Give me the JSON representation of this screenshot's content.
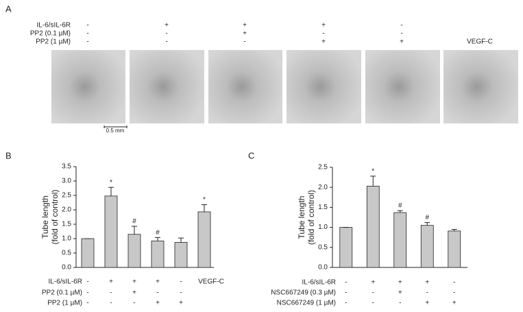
{
  "panel_labels": [
    "A",
    "B",
    "C"
  ],
  "panel_a": {
    "rows": [
      {
        "name": "IL-6/sIL-6R",
        "marks": [
          "-",
          "+",
          "+",
          "+",
          "-",
          null
        ]
      },
      {
        "name": "PP2 (0.1 µM)",
        "marks": [
          "-",
          "-",
          "+",
          "-",
          "-",
          null
        ]
      },
      {
        "name": "PP2 (1 µM)",
        "marks": [
          "-",
          "-",
          "-",
          "+",
          "+",
          "VEGF-C"
        ]
      }
    ],
    "scale_bar": "0.5 mm"
  },
  "chart_data": [
    {
      "type": "bar",
      "ylabel": [
        "Tube length",
        "(fold of control)"
      ],
      "color": "#c8c8c8",
      "values": [
        1.0,
        2.48,
        1.15,
        0.92,
        0.87,
        1.93
      ],
      "errors": [
        0,
        0.3,
        0.28,
        0.12,
        0.15,
        0.25
      ],
      "annotations": [
        null,
        "*",
        "#",
        "#",
        null,
        "*"
      ],
      "ylim": [
        0,
        3.5
      ],
      "yticks": [
        {
          "value": 0,
          "label": "0.0"
        },
        0.5,
        {
          "value": 1,
          "label": "1.0"
        },
        1.5,
        {
          "value": 2,
          "label": "2.0"
        },
        2.5,
        {
          "value": 3,
          "label": "3.0"
        },
        3.5
      ],
      "treatments": [
        {
          "name": "IL-6/sIL-6R",
          "marks": [
            "-",
            "+",
            "+",
            "+",
            "-",
            "VEGF-C"
          ]
        },
        {
          "name": "PP2 (0.1 µM)",
          "marks": [
            "-",
            "-",
            "+",
            "-",
            "-",
            null
          ]
        },
        {
          "name": "PP2 (1 µM)",
          "marks": [
            "-",
            "-",
            "-",
            "+",
            "+",
            null
          ]
        }
      ]
    },
    {
      "type": "bar",
      "ylabel": [
        "Tube length",
        "(fold of control)"
      ],
      "color": "#c8c8c8",
      "values": [
        1.0,
        2.03,
        1.37,
        1.05,
        0.91
      ],
      "errors": [
        0,
        0.25,
        0.05,
        0.07,
        0.04
      ],
      "annotations": [
        null,
        "*",
        "#",
        "#",
        null
      ],
      "ylim": [
        0,
        2.5
      ],
      "yticks": [
        {
          "value": 0,
          "label": "0.0"
        },
        0.5,
        {
          "value": 1,
          "label": "1.0"
        },
        1.5,
        {
          "value": 2,
          "label": "2.0"
        },
        2.5
      ],
      "treatments": [
        {
          "name": "IL-6/sIL-6R",
          "marks": [
            "-",
            "+",
            "+",
            "+",
            "-"
          ]
        },
        {
          "name": "NSC667249 (0.3 µM)",
          "marks": [
            "-",
            "-",
            "+",
            "-",
            "-"
          ]
        },
        {
          "name": "NSC667249 (1 µM)",
          "marks": [
            "-",
            "-",
            "-",
            "+",
            "+"
          ]
        }
      ]
    }
  ]
}
